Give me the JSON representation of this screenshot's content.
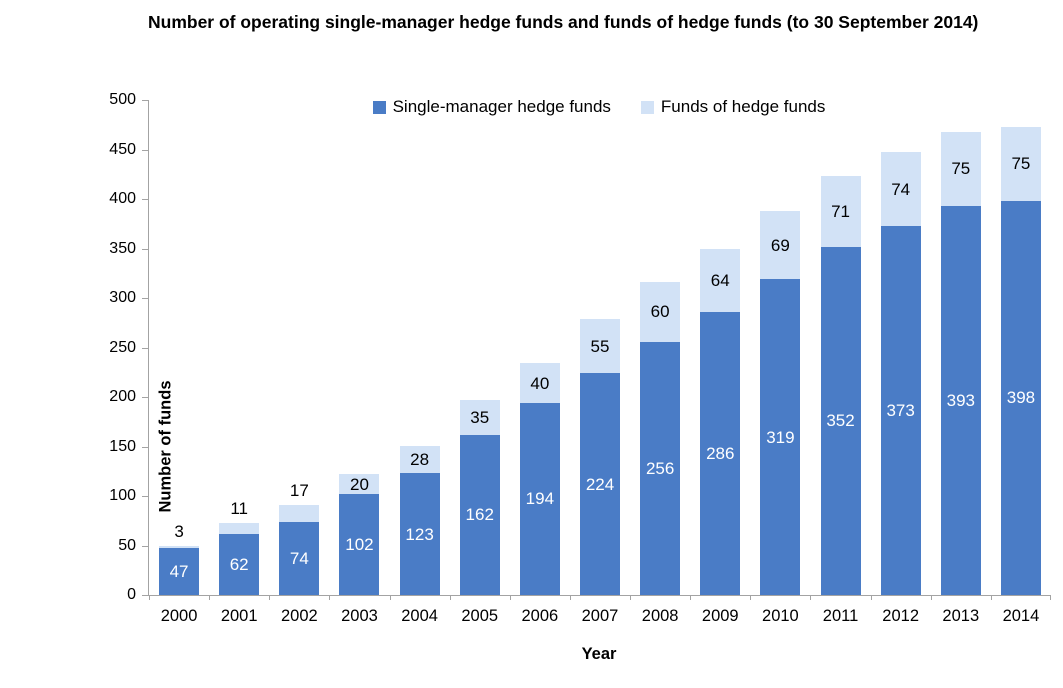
{
  "chart_data": {
    "type": "bar",
    "stacked": true,
    "title": "Number of operating single-manager hedge funds and funds of hedge funds (to 30 September 2014)",
    "xlabel": "Year",
    "ylabel": "Number of funds",
    "categories": [
      "2000",
      "2001",
      "2002",
      "2003",
      "2004",
      "2005",
      "2006",
      "2007",
      "2008",
      "2009",
      "2010",
      "2011",
      "2012",
      "2013",
      "2014"
    ],
    "series": [
      {
        "name": "Single-manager hedge funds",
        "color": "#4A7CC6",
        "label_color": "#FFFFFF",
        "values": [
          47,
          62,
          74,
          102,
          123,
          162,
          194,
          224,
          256,
          286,
          319,
          352,
          373,
          393,
          398
        ]
      },
      {
        "name": "Funds of hedge funds",
        "color": "#D2E2F6",
        "label_color": "#000000",
        "values": [
          3,
          11,
          17,
          20,
          28,
          35,
          40,
          55,
          60,
          64,
          69,
          71,
          74,
          75,
          75
        ]
      }
    ],
    "ylim": [
      0,
      500
    ],
    "y_ticks": [
      0,
      50,
      100,
      150,
      200,
      250,
      300,
      350,
      400,
      450,
      500
    ],
    "grid": false,
    "legend_position": "top",
    "axis_color": "#A3A3A3",
    "outside_label_threshold": 20
  }
}
